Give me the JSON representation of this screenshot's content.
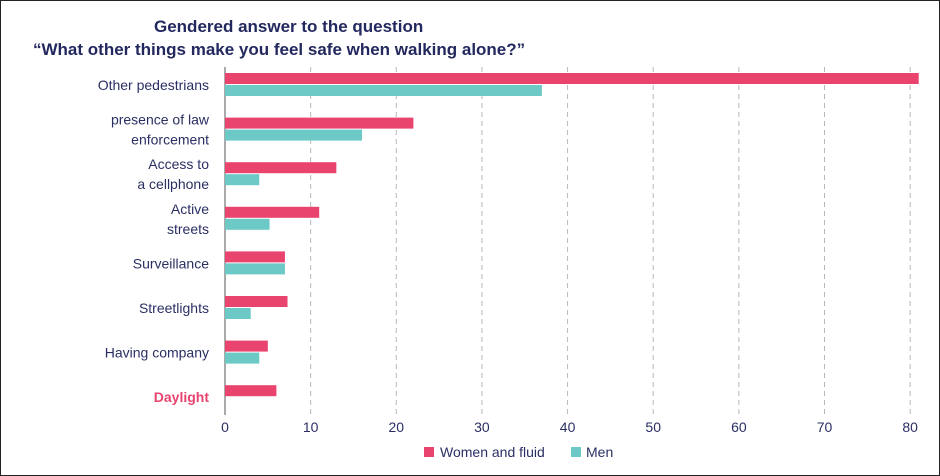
{
  "chart_data": {
    "type": "bar",
    "orientation": "horizontal",
    "title": [
      "Gendered answer to the question",
      "“What other things make you feel safe when walking alone?”"
    ],
    "categories": [
      {
        "lines": [
          "Other pedestrians"
        ],
        "highlight": false
      },
      {
        "lines": [
          "presence of law",
          "enforcement"
        ],
        "highlight": false
      },
      {
        "lines": [
          "Access to",
          "a cellphone"
        ],
        "highlight": false
      },
      {
        "lines": [
          "Active",
          "streets"
        ],
        "highlight": false
      },
      {
        "lines": [
          "Surveillance"
        ],
        "highlight": false
      },
      {
        "lines": [
          "Streetlights"
        ],
        "highlight": false
      },
      {
        "lines": [
          "Having company"
        ],
        "highlight": false
      },
      {
        "lines": [
          "Daylight"
        ],
        "highlight": true
      }
    ],
    "series": [
      {
        "name": "Women and fluid",
        "color": "#e8446e",
        "values": [
          81,
          22,
          13,
          11,
          7,
          7.3,
          5,
          6
        ]
      },
      {
        "name": "Men",
        "color": "#6cc9c6",
        "values": [
          37,
          16,
          4,
          5.2,
          7,
          3,
          4,
          null
        ]
      }
    ],
    "xlim": [
      0,
      81.5
    ],
    "xticks": [
      0,
      10,
      20,
      30,
      40,
      50,
      60,
      70,
      80
    ],
    "grid": true,
    "legend_position": "bottom-center",
    "xlabel": "",
    "ylabel": "",
    "colors": {
      "title": "#23285e",
      "text": "#2a2f63",
      "highlight": "#e8446e",
      "grid": "#b8b8b8"
    }
  }
}
